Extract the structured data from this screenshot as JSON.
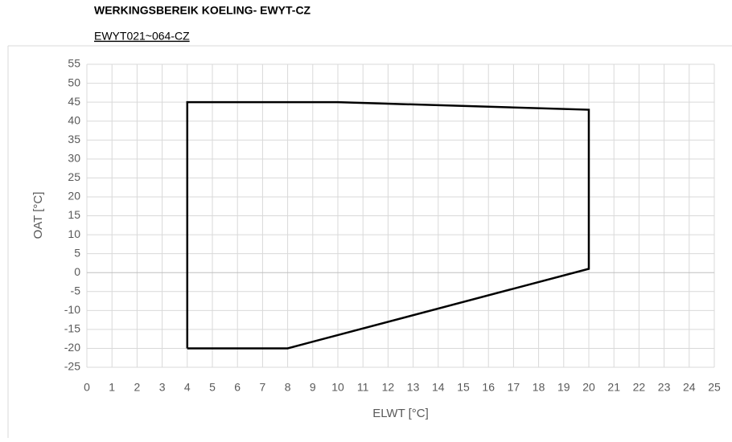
{
  "chart_data": {
    "type": "line",
    "title": "WERKINGSBEREIK KOELING- EWYT-CZ",
    "subtitle": "EWYT021~064-CZ",
    "x_label": "ELWT [°C]",
    "y_label": "OAT [°C]",
    "x": [
      4,
      4,
      10,
      20,
      20,
      8,
      4
    ],
    "series": [
      {
        "color": "#000000",
        "values": [
          -20,
          45,
          45,
          43,
          1,
          -20,
          -20
        ]
      }
    ],
    "xlim": [
      0,
      25
    ],
    "xticks": [
      0,
      1,
      2,
      3,
      4,
      5,
      6,
      7,
      8,
      9,
      10,
      11,
      12,
      13,
      14,
      15,
      16,
      17,
      18,
      19,
      20,
      21,
      22,
      23,
      24,
      25
    ],
    "ylim": [
      -25,
      55
    ],
    "yticks": [
      -25,
      -20,
      -15,
      -10,
      -5,
      0,
      5,
      10,
      15,
      20,
      25,
      30,
      35,
      40,
      45,
      50,
      55
    ],
    "grid": true
  }
}
